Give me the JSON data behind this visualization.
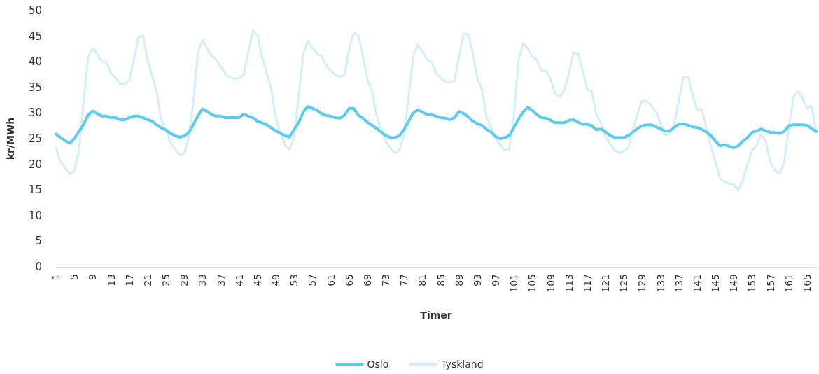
{
  "chart_data": {
    "type": "line",
    "xlabel": "Timer",
    "ylabel": "kr/MWh",
    "ylim": [
      0,
      50
    ],
    "yticks": [
      0,
      5,
      10,
      15,
      20,
      25,
      30,
      35,
      40,
      45,
      50
    ],
    "grid": false,
    "legend": "bottom",
    "marker": "none",
    "line_style": "solid",
    "categories": [
      "1",
      null,
      null,
      null,
      "5",
      null,
      null,
      null,
      "9",
      null,
      null,
      null,
      "13",
      null,
      null,
      null,
      "17",
      null,
      null,
      null,
      "21",
      null,
      null,
      null,
      "25",
      null,
      null,
      null,
      "29",
      null,
      null,
      null,
      "33",
      null,
      null,
      null,
      "37",
      null,
      null,
      null,
      "41",
      null,
      null,
      null,
      "45",
      null,
      null,
      null,
      "49",
      null,
      null,
      null,
      "53",
      null,
      null,
      null,
      "57",
      null,
      null,
      null,
      "61",
      null,
      null,
      null,
      "65",
      null,
      null,
      null,
      "69",
      null,
      null,
      null,
      "73",
      null,
      null,
      null,
      "77",
      null,
      null,
      null,
      "81",
      null,
      null,
      null,
      "85",
      null,
      null,
      null,
      "89",
      null,
      null,
      null,
      "93",
      null,
      null,
      null,
      "97",
      null,
      null,
      null,
      "101",
      null,
      null,
      null,
      "105",
      null,
      null,
      null,
      "109",
      null,
      null,
      null,
      "113",
      null,
      null,
      null,
      "117",
      null,
      null,
      null,
      "121",
      null,
      null,
      null,
      "125",
      null,
      null,
      null,
      "129",
      null,
      null,
      null,
      "133",
      null,
      null,
      null,
      "137",
      null,
      null,
      null,
      "141",
      null,
      null,
      null,
      "145",
      null,
      null,
      null,
      "149",
      null,
      null,
      null,
      "153",
      null,
      null,
      null,
      "157",
      null,
      null,
      null,
      "161",
      null,
      null,
      null,
      "165",
      null,
      null
    ],
    "series": [
      {
        "name": "Oslo",
        "color": "#5ccbf4",
        "values": [
          25.9,
          25.2,
          24.6,
          24.1,
          25.0,
          26.4,
          27.7,
          29.6,
          30.4,
          29.9,
          29.4,
          29.4,
          29.1,
          29.1,
          28.7,
          28.7,
          29.1,
          29.4,
          29.4,
          29.1,
          28.7,
          28.4,
          27.7,
          27.1,
          26.7,
          26.0,
          25.6,
          25.3,
          25.5,
          26.2,
          27.7,
          29.5,
          30.8,
          30.3,
          29.7,
          29.4,
          29.4,
          29.1,
          29.1,
          29.1,
          29.1,
          29.8,
          29.4,
          29.1,
          28.4,
          28.1,
          27.7,
          27.1,
          26.5,
          26.1,
          25.6,
          25.3,
          26.8,
          28.1,
          30.2,
          31.3,
          30.9,
          30.5,
          29.9,
          29.5,
          29.4,
          29.1,
          29.0,
          29.6,
          30.9,
          30.9,
          29.6,
          29.0,
          28.2,
          27.6,
          27.0,
          26.3,
          25.6,
          25.2,
          25.2,
          25.6,
          26.8,
          28.4,
          30.0,
          30.6,
          30.2,
          29.7,
          29.7,
          29.4,
          29.1,
          29.0,
          28.7,
          29.1,
          30.3,
          29.9,
          29.3,
          28.4,
          27.9,
          27.6,
          26.8,
          26.3,
          25.4,
          25.0,
          25.2,
          25.6,
          27.2,
          28.8,
          30.2,
          31.1,
          30.5,
          29.7,
          29.1,
          29.0,
          28.6,
          28.1,
          28.1,
          28.1,
          28.6,
          28.7,
          28.2,
          27.8,
          27.8,
          27.5,
          26.7,
          26.9,
          26.3,
          25.6,
          25.2,
          25.2,
          25.2,
          25.6,
          26.3,
          27.0,
          27.5,
          27.7,
          27.7,
          27.3,
          26.9,
          26.5,
          26.5,
          27.2,
          27.8,
          27.9,
          27.6,
          27.3,
          27.2,
          26.8,
          26.3,
          25.6,
          24.5,
          23.6,
          23.8,
          23.5,
          23.2,
          23.6,
          24.5,
          25.2,
          26.2,
          26.5,
          26.9,
          26.5,
          26.2,
          26.2,
          26.0,
          26.4,
          27.5,
          27.7,
          27.7,
          27.7,
          27.6,
          27.0,
          26.4
        ]
      },
      {
        "name": "Tyskland",
        "color": "#d0effb",
        "values": [
          23.1,
          20.4,
          19.3,
          18.1,
          18.8,
          22.7,
          31.8,
          40.9,
          42.6,
          41.6,
          40.0,
          40.0,
          37.8,
          36.9,
          35.7,
          35.7,
          36.4,
          40.4,
          44.8,
          45.1,
          40.4,
          37.2,
          34.1,
          28.6,
          26.8,
          24.3,
          22.9,
          21.8,
          22.0,
          25.4,
          32.2,
          41.8,
          44.3,
          42.5,
          41.1,
          40.4,
          39.1,
          37.6,
          36.9,
          36.7,
          36.8,
          37.5,
          41.8,
          46.1,
          45.2,
          40.9,
          37.9,
          34.7,
          29.1,
          26.1,
          23.8,
          22.9,
          25.2,
          33.6,
          41.6,
          44.1,
          42.7,
          41.6,
          41.1,
          39.3,
          38.2,
          37.5,
          37.0,
          37.5,
          42.3,
          45.7,
          45.2,
          41.3,
          36.6,
          34.3,
          29.5,
          26.5,
          24.5,
          23.1,
          22.2,
          22.7,
          25.9,
          33.1,
          41.3,
          43.3,
          42.0,
          40.5,
          40.0,
          37.8,
          36.9,
          36.1,
          36.0,
          36.3,
          40.9,
          45.4,
          45.4,
          41.8,
          36.8,
          34.7,
          29.3,
          27.2,
          25.2,
          23.8,
          22.7,
          23.0,
          29.5,
          40.4,
          43.6,
          42.7,
          41.0,
          40.4,
          38.2,
          38.2,
          36.6,
          33.8,
          33.2,
          34.3,
          37.7,
          41.8,
          41.6,
          38.2,
          34.7,
          34.1,
          29.7,
          28.1,
          25.4,
          24.0,
          22.7,
          22.2,
          22.6,
          23.2,
          26.8,
          30.0,
          32.4,
          32.3,
          31.4,
          30.2,
          28.1,
          25.6,
          25.9,
          27.7,
          32.3,
          37.0,
          37.0,
          33.6,
          30.6,
          30.7,
          27.2,
          23.6,
          20.4,
          17.4,
          16.5,
          16.2,
          16.1,
          14.9,
          17.0,
          19.9,
          22.7,
          23.8,
          25.9,
          24.5,
          20.4,
          18.7,
          18.2,
          20.4,
          26.8,
          33.1,
          34.3,
          33.0,
          30.9,
          31.4,
          26.4
        ]
      }
    ]
  }
}
